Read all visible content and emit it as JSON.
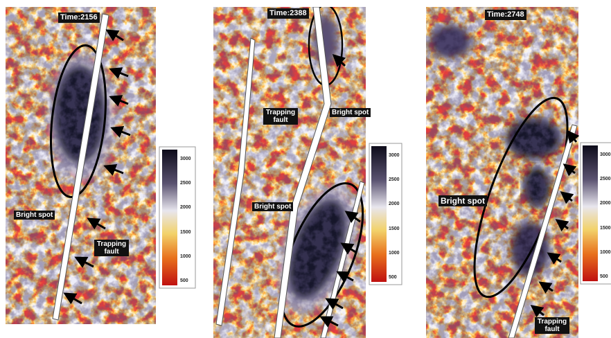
{
  "panels": [
    {
      "time": "Time:2156",
      "labels": [
        "Bright spot",
        "Trapping fault"
      ],
      "colorbar": [
        "3000",
        "2500",
        "2000",
        "1500",
        "1000",
        "500"
      ]
    },
    {
      "time": "Time:2388",
      "labels": [
        "Trapping fault",
        "Bright spot",
        "Bright spot"
      ],
      "colorbar": [
        "3000",
        "2500",
        "2000",
        "1500",
        "1000",
        "500"
      ]
    },
    {
      "time": "Time:2748",
      "labels": [
        "Bright spot",
        "Trapping fault"
      ],
      "colorbar": [
        "3000",
        "2500",
        "2000",
        "1500",
        "1000",
        "500"
      ]
    }
  ]
}
